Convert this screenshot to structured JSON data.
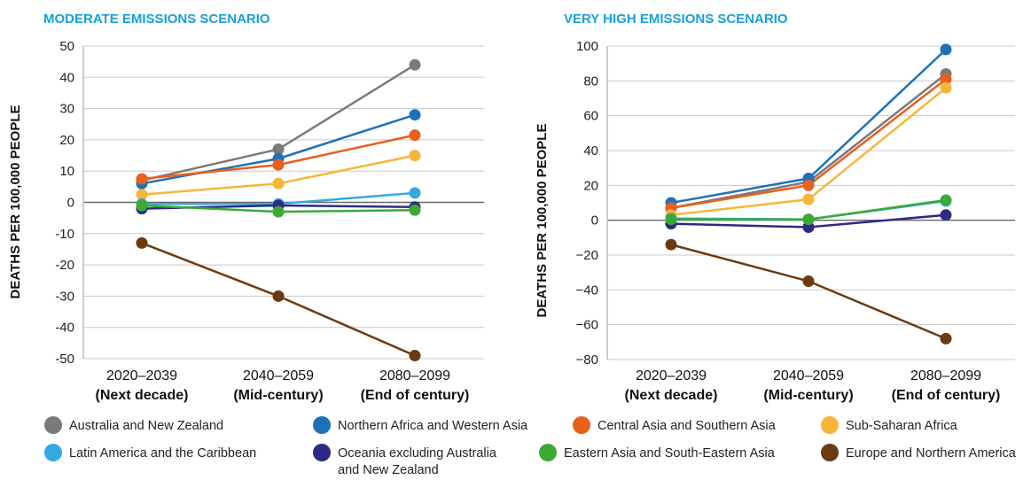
{
  "series_meta": [
    {
      "name": "Australia and New Zealand",
      "color": "#7a7a7a"
    },
    {
      "name": "Northern Africa and Western Asia",
      "color": "#1d71b8"
    },
    {
      "name": "Central Asia and Southern Asia",
      "color": "#e8601c"
    },
    {
      "name": "Sub-Saharan Africa",
      "color": "#f7b538"
    },
    {
      "name": "Latin America and the Caribbean",
      "color": "#36a9e1"
    },
    {
      "name": "Oceania excluding Australia and New Zealand",
      "color": "#2e2a83"
    },
    {
      "name": "Eastern Asia and South-Eastern Asia",
      "color": "#3aaa35"
    },
    {
      "name": "Europe and Northern America",
      "color": "#6b3a12"
    }
  ],
  "legend": {
    "items": [
      {
        "lines": [
          "Australia and New Zealand"
        ],
        "color": "#7a7a7a"
      },
      {
        "lines": [
          "Northern Africa and Western Asia"
        ],
        "color": "#1d71b8"
      },
      {
        "lines": [
          "Central Asia and Southern Asia"
        ],
        "color": "#e8601c"
      },
      {
        "lines": [
          "Sub-Saharan Africa"
        ],
        "color": "#f7b538"
      },
      {
        "lines": [
          "Latin America and the Caribbean"
        ],
        "color": "#36a9e1"
      },
      {
        "lines": [
          "Oceania excluding Australia",
          "and New Zealand"
        ],
        "color": "#2e2a83"
      },
      {
        "lines": [
          "Eastern Asia and South-Eastern Asia"
        ],
        "color": "#3aaa35"
      },
      {
        "lines": [
          "Europe and Northern America"
        ],
        "color": "#6b3a12"
      }
    ]
  },
  "chart_data": [
    {
      "type": "line",
      "title": "MODERATE EMISSIONS SCENARIO",
      "ylabel": "DEATHS PER 100,000 PEOPLE",
      "xlabel": "",
      "categories": [
        {
          "period": "2020–2039",
          "label": "(Next decade)"
        },
        {
          "period": "2040–2059",
          "label": "(Mid-century)"
        },
        {
          "period": "2080–2099",
          "label": "(End of century)"
        }
      ],
      "yticks": [
        "50",
        "40",
        "30",
        "20",
        "10",
        "0",
        "-10",
        "-20",
        "-30",
        "-40",
        "-50"
      ],
      "ylim": [
        -50,
        50
      ],
      "grid": true,
      "series": [
        {
          "name": "Australia and New Zealand",
          "values": [
            7,
            17,
            44
          ]
        },
        {
          "name": "Northern Africa and Western Asia",
          "values": [
            6,
            14,
            28
          ]
        },
        {
          "name": "Central Asia and Southern Asia",
          "values": [
            7.5,
            12,
            21.5
          ]
        },
        {
          "name": "Sub-Saharan Africa",
          "values": [
            2.5,
            6,
            15
          ]
        },
        {
          "name": "Latin America and the Caribbean",
          "values": [
            -0.5,
            -0.5,
            3
          ]
        },
        {
          "name": "Oceania excluding Australia and New Zealand",
          "values": [
            -2,
            -1,
            -1.5
          ]
        },
        {
          "name": "Eastern Asia and South-Eastern Asia",
          "values": [
            -1,
            -3,
            -2.5
          ]
        },
        {
          "name": "Europe and Northern America",
          "values": [
            -13,
            -30,
            -49
          ]
        }
      ]
    },
    {
      "type": "line",
      "title": "VERY HIGH EMISSIONS SCENARIO",
      "ylabel": "DEATHS PER 100,000 PEOPLE",
      "xlabel": "",
      "categories": [
        {
          "period": "2020–2039",
          "label": "(Next decade)"
        },
        {
          "period": "2040–2059",
          "label": "(Mid-century)"
        },
        {
          "period": "2080–2099",
          "label": "(End of century)"
        }
      ],
      "yticks": [
        "100",
        "80",
        "60",
        "40",
        "20",
        "0",
        "−20",
        "−40",
        "−60",
        "−80"
      ],
      "ylim": [
        -80,
        100
      ],
      "grid": true,
      "series": [
        {
          "name": "Australia and New Zealand",
          "values": [
            7,
            22,
            84
          ]
        },
        {
          "name": "Northern Africa and Western Asia",
          "values": [
            10,
            24,
            98
          ]
        },
        {
          "name": "Central Asia and Southern Asia",
          "values": [
            7,
            20,
            81
          ]
        },
        {
          "name": "Sub-Saharan Africa",
          "values": [
            3,
            12,
            76
          ]
        },
        {
          "name": "Latin America and the Caribbean",
          "values": [
            1,
            0.5,
            11
          ]
        },
        {
          "name": "Oceania excluding Australia and New Zealand",
          "values": [
            -2,
            -4,
            3
          ]
        },
        {
          "name": "Eastern Asia and South-Eastern Asia",
          "values": [
            0.5,
            0.5,
            11.5
          ]
        },
        {
          "name": "Europe and Northern America",
          "values": [
            -14,
            -35,
            -68
          ]
        }
      ]
    }
  ]
}
